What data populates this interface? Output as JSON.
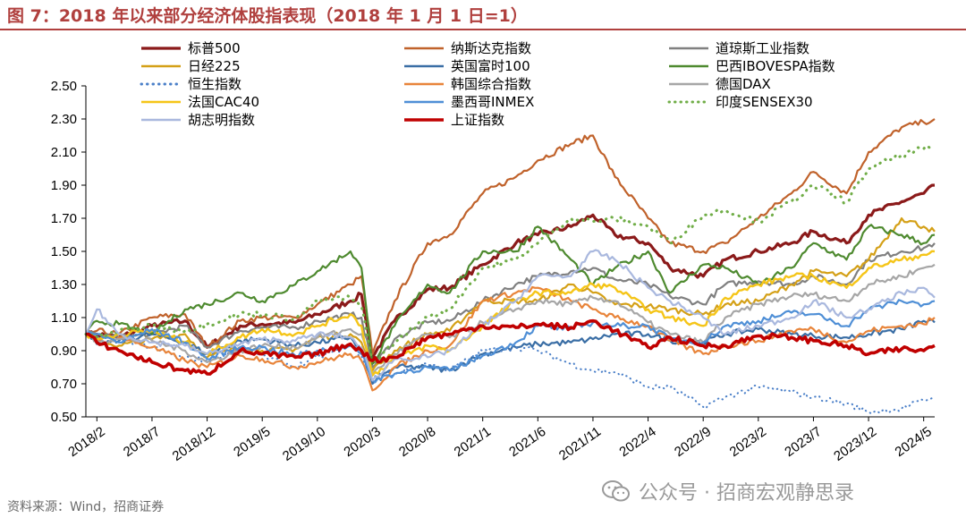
{
  "title": "图 7：2018 年以来部分经济体股指表现（2018 年 1 月 1 日=1）",
  "source": "资料来源：Wind，招商证券",
  "watermark": "公众号 · 招商宏观静思录",
  "chart_data": {
    "type": "line",
    "title": "图 7：2018 年以来部分经济体股指表现（2018 年 1 月 1 日=1）",
    "xlabel": "",
    "ylabel": "",
    "ylim": [
      0.5,
      2.5
    ],
    "yticks": [
      "0.50",
      "0.70",
      "0.90",
      "1.10",
      "1.30",
      "1.50",
      "1.70",
      "1.90",
      "2.10",
      "2.30",
      "2.50"
    ],
    "xticks": [
      "2018/2",
      "2018/7",
      "2018/12",
      "2019/5",
      "2019/10",
      "2020/3",
      "2020/8",
      "2021/1",
      "2021/6",
      "2021/11",
      "2022/4",
      "2022/9",
      "2023/2",
      "2023/7",
      "2023/12",
      "2024/5"
    ],
    "grid": false,
    "legend_position": "top",
    "x": [
      "2018/1",
      "2018/2",
      "2018/4",
      "2018/7",
      "2018/10",
      "2018/12",
      "2019/3",
      "2019/5",
      "2019/8",
      "2019/10",
      "2020/1",
      "2020/2",
      "2020/3",
      "2020/5",
      "2020/8",
      "2020/10",
      "2021/1",
      "2021/4",
      "2021/6",
      "2021/9",
      "2021/11",
      "2022/1",
      "2022/4",
      "2022/6",
      "2022/9",
      "2022/11",
      "2023/2",
      "2023/5",
      "2023/7",
      "2023/10",
      "2023/12",
      "2024/3",
      "2024/5",
      "2024/6"
    ],
    "series": [
      {
        "name": "标普500",
        "color": "#8b1a1a",
        "style": "solid",
        "width": 3.2,
        "values": [
          1.0,
          1.0,
          0.98,
          1.05,
          1.08,
          0.92,
          1.05,
          1.06,
          1.07,
          1.12,
          1.2,
          1.24,
          0.86,
          1.08,
          1.27,
          1.28,
          1.42,
          1.55,
          1.6,
          1.65,
          1.72,
          1.6,
          1.55,
          1.4,
          1.35,
          1.45,
          1.5,
          1.55,
          1.62,
          1.55,
          1.72,
          1.8,
          1.85,
          1.9
        ]
      },
      {
        "name": "纳斯达克指数",
        "color": "#c0622b",
        "style": "solid",
        "width": 2.2,
        "values": [
          1.0,
          1.02,
          1.0,
          1.1,
          1.12,
          0.92,
          1.08,
          1.1,
          1.1,
          1.18,
          1.3,
          1.35,
          0.88,
          1.2,
          1.55,
          1.6,
          1.85,
          1.95,
          2.05,
          2.15,
          2.2,
          1.95,
          1.7,
          1.55,
          1.5,
          1.55,
          1.7,
          1.85,
          1.98,
          1.85,
          2.1,
          2.25,
          2.28,
          2.3
        ]
      },
      {
        "name": "道琼斯工业指数",
        "color": "#808080",
        "style": "solid",
        "width": 2.2,
        "values": [
          1.0,
          1.0,
          0.98,
          1.0,
          1.05,
          0.92,
          1.02,
          1.04,
          1.04,
          1.08,
          1.12,
          1.1,
          0.8,
          0.97,
          1.07,
          1.08,
          1.2,
          1.3,
          1.35,
          1.38,
          1.4,
          1.33,
          1.3,
          1.23,
          1.18,
          1.3,
          1.32,
          1.3,
          1.35,
          1.3,
          1.45,
          1.5,
          1.52,
          1.55
        ]
      },
      {
        "name": "日经225",
        "color": "#d4a017",
        "style": "solid",
        "width": 2.2,
        "values": [
          1.0,
          0.96,
          0.93,
          0.97,
          1.0,
          0.86,
          0.92,
          0.9,
          0.91,
          0.98,
          1.0,
          0.95,
          0.78,
          0.9,
          1.0,
          1.02,
          1.2,
          1.2,
          1.2,
          1.3,
          1.25,
          1.18,
          1.17,
          1.15,
          1.12,
          1.18,
          1.2,
          1.3,
          1.38,
          1.35,
          1.45,
          1.7,
          1.65,
          1.62
        ]
      },
      {
        "name": "英国富时100",
        "color": "#3a6ea5",
        "style": "solid",
        "width": 2.2,
        "values": [
          1.0,
          0.94,
          0.96,
          1.0,
          0.95,
          0.88,
          0.96,
          0.97,
          0.93,
          0.95,
          0.98,
          0.9,
          0.7,
          0.8,
          0.8,
          0.78,
          0.88,
          0.92,
          0.94,
          0.95,
          0.97,
          1.0,
          1.0,
          0.96,
          0.95,
          1.0,
          1.03,
          1.0,
          0.99,
          0.98,
          1.0,
          1.03,
          1.08,
          1.07
        ]
      },
      {
        "name": "巴西IBOVESPA指数",
        "color": "#4e8a2f",
        "style": "solid",
        "width": 2.2,
        "values": [
          1.0,
          1.08,
          1.06,
          1.0,
          1.15,
          1.18,
          1.25,
          1.2,
          1.3,
          1.38,
          1.5,
          1.4,
          0.82,
          1.05,
          1.3,
          1.25,
          1.5,
          1.5,
          1.65,
          1.45,
          1.3,
          1.4,
          1.5,
          1.25,
          1.42,
          1.4,
          1.3,
          1.4,
          1.55,
          1.45,
          1.65,
          1.6,
          1.55,
          1.6
        ]
      },
      {
        "name": "恒生指数",
        "color": "#4a7fc8",
        "style": "dotted",
        "width": 2.0,
        "values": [
          1.0,
          0.98,
          0.97,
          0.92,
          0.85,
          0.84,
          0.92,
          0.87,
          0.8,
          0.86,
          0.93,
          0.87,
          0.76,
          0.76,
          0.82,
          0.78,
          0.9,
          0.92,
          0.9,
          0.82,
          0.78,
          0.77,
          0.68,
          0.68,
          0.56,
          0.62,
          0.68,
          0.65,
          0.62,
          0.58,
          0.53,
          0.55,
          0.6,
          0.62
        ]
      },
      {
        "name": "韩国综合指数",
        "color": "#e8843a",
        "style": "solid",
        "width": 2.2,
        "values": [
          1.0,
          0.97,
          0.98,
          0.92,
          0.84,
          0.8,
          0.87,
          0.85,
          0.8,
          0.83,
          0.88,
          0.84,
          0.66,
          0.8,
          0.9,
          0.93,
          1.2,
          1.25,
          1.28,
          1.2,
          1.15,
          1.1,
          1.05,
          0.96,
          0.88,
          0.93,
          0.96,
          1.02,
          1.03,
          0.95,
          1.02,
          1.05,
          1.06,
          1.1
        ]
      },
      {
        "name": "德国DAX",
        "color": "#a6a6a6",
        "style": "solid",
        "width": 2.2,
        "values": [
          1.0,
          0.96,
          0.97,
          0.96,
          0.9,
          0.83,
          0.9,
          0.93,
          0.92,
          0.98,
          1.03,
          1.0,
          0.76,
          0.88,
          1.0,
          0.98,
          1.07,
          1.15,
          1.2,
          1.18,
          1.22,
          1.2,
          1.07,
          1.0,
          0.95,
          1.1,
          1.18,
          1.23,
          1.24,
          1.2,
          1.3,
          1.35,
          1.4,
          1.42
        ]
      },
      {
        "name": "法国CAC40",
        "color": "#f5c518",
        "style": "solid",
        "width": 2.4,
        "values": [
          1.0,
          0.97,
          1.0,
          1.02,
          0.95,
          0.88,
          0.98,
          1.03,
          1.0,
          1.05,
          1.12,
          1.05,
          0.75,
          0.85,
          0.93,
          0.9,
          1.05,
          1.2,
          1.25,
          1.25,
          1.3,
          1.28,
          1.15,
          1.1,
          1.05,
          1.22,
          1.3,
          1.35,
          1.35,
          1.28,
          1.4,
          1.45,
          1.48,
          1.5
        ]
      },
      {
        "name": "墨西哥INMEX",
        "color": "#4f8fd6",
        "style": "solid",
        "width": 2.2,
        "values": [
          1.0,
          1.0,
          0.95,
          1.03,
          0.95,
          0.85,
          0.92,
          0.92,
          0.87,
          0.9,
          0.93,
          0.88,
          0.72,
          0.76,
          0.8,
          0.78,
          0.87,
          0.95,
          1.05,
          1.03,
          1.07,
          1.05,
          1.05,
          0.97,
          0.95,
          1.05,
          1.08,
          1.13,
          1.12,
          1.05,
          1.15,
          1.2,
          1.18,
          1.2
        ]
      },
      {
        "name": "印度SENSEX30",
        "color": "#70ad47",
        "style": "dotted",
        "width": 3.0,
        "values": [
          1.0,
          0.98,
          1.02,
          1.05,
          1.02,
          1.06,
          1.12,
          1.12,
          1.09,
          1.2,
          1.22,
          1.17,
          0.82,
          0.95,
          1.1,
          1.15,
          1.4,
          1.45,
          1.55,
          1.7,
          1.68,
          1.7,
          1.65,
          1.55,
          1.72,
          1.75,
          1.68,
          1.8,
          1.9,
          1.8,
          2.0,
          2.08,
          2.12,
          2.13
        ]
      },
      {
        "name": "胡志明指数",
        "color": "#a9b8de",
        "style": "solid",
        "width": 2.2,
        "values": [
          1.0,
          1.15,
          1.0,
          0.95,
          0.93,
          0.88,
          0.94,
          0.97,
          0.96,
          1.0,
          0.98,
          0.92,
          0.72,
          0.85,
          0.86,
          0.9,
          1.05,
          1.2,
          1.35,
          1.35,
          1.5,
          1.45,
          1.28,
          1.2,
          1.1,
          1.0,
          1.05,
          1.1,
          1.2,
          1.1,
          1.15,
          1.25,
          1.28,
          1.22
        ]
      },
      {
        "name": "上证指数",
        "color": "#c00000",
        "style": "solid",
        "width": 3.6,
        "values": [
          1.0,
          0.95,
          0.9,
          0.83,
          0.78,
          0.76,
          0.9,
          0.88,
          0.86,
          0.88,
          0.94,
          0.9,
          0.84,
          0.86,
          0.98,
          1.0,
          1.05,
          1.04,
          1.06,
          1.04,
          1.08,
          1.02,
          0.92,
          0.98,
          0.93,
          0.93,
          0.99,
          0.98,
          0.96,
          0.93,
          0.88,
          0.91,
          0.9,
          0.93
        ]
      }
    ]
  }
}
